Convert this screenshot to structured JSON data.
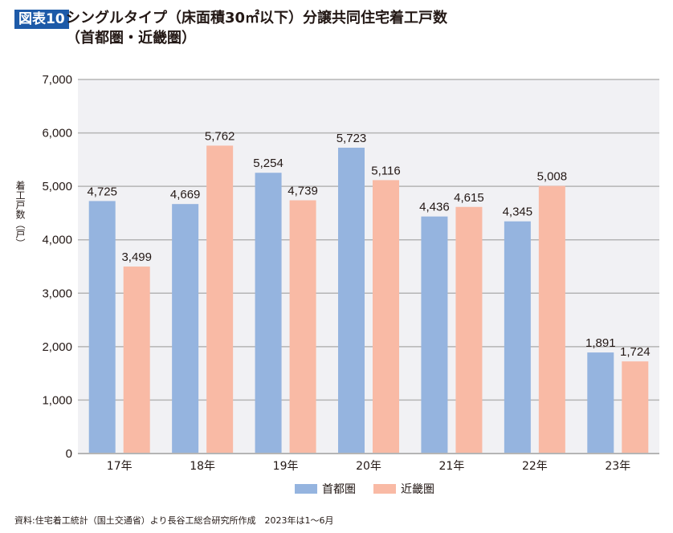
{
  "header": {
    "badge": "図表10",
    "title_line1": "シングルタイプ（床面積30㎡以下）分譲共同住宅着工戸数",
    "title_line2": "（首都圏・近畿圏）"
  },
  "colors": {
    "badge": "#1d5aa8",
    "shutoken": "#95b4df",
    "kinki": "#f9baa5",
    "plot_bg": "#f1f1f4",
    "grid": "#b5b5b5"
  },
  "chart_data": {
    "type": "bar",
    "title": "シングルタイプ（床面積30㎡以下）分譲共同住宅着工戸数（首都圏・近畿圏）",
    "xlabel": "",
    "ylabel": "着工戸数（戸）",
    "ylim": [
      0,
      7000
    ],
    "yticks": [
      0,
      1000,
      2000,
      3000,
      4000,
      5000,
      6000,
      7000
    ],
    "ytick_labels": [
      "0",
      "1,000",
      "2,000",
      "3,000",
      "4,000",
      "5,000",
      "6,000",
      "7,000"
    ],
    "grid": true,
    "legend": "bottom",
    "categories": [
      "17年",
      "18年",
      "19年",
      "20年",
      "21年",
      "22年",
      "23年"
    ],
    "series": [
      {
        "name": "首都圏",
        "values": [
          4725,
          4669,
          5254,
          5723,
          4436,
          4345,
          1891
        ],
        "labels": [
          "4,725",
          "4,669",
          "5,254",
          "5,723",
          "4,436",
          "4,345",
          "1,891"
        ]
      },
      {
        "name": "近畿圏",
        "values": [
          3499,
          5762,
          4739,
          5116,
          4615,
          5008,
          1724
        ],
        "labels": [
          "3,499",
          "5,762",
          "4,739",
          "5,116",
          "4,615",
          "5,008",
          "1,724"
        ]
      }
    ]
  },
  "legend": {
    "items": [
      "首都圏",
      "近畿圏"
    ]
  },
  "footer": {
    "source": "資料:住宅着工統計（国土交通省）より長谷工総合研究所作成　2023年は1～6月"
  }
}
